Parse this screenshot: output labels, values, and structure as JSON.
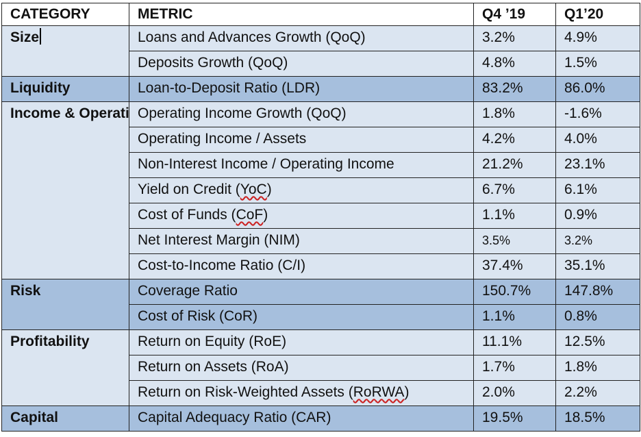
{
  "headers": {
    "category": "CATEGORY",
    "metric": "METRIC",
    "q4": "Q4 ’19",
    "q1": "Q1’20"
  },
  "groups": [
    {
      "category": "Size",
      "rows": [
        {
          "metric": "Loans and Advances Growth (QoQ)",
          "q4": "3.2%",
          "q1": "4.9%"
        },
        {
          "metric": "Deposits Growth (QoQ)",
          "q4": "4.8%",
          "q1": "1.5%"
        }
      ]
    },
    {
      "category": "Liquidity",
      "rows": [
        {
          "metric": "Loan-to-Deposit Ratio (LDR)",
          "q4": "83.2%",
          "q1": "86.0%"
        }
      ]
    },
    {
      "category": "Income & Operating Efficiency",
      "rows": [
        {
          "metric": "Operating Income Growth (QoQ)",
          "q4": "1.8%",
          "q1": "-1.6%"
        },
        {
          "metric": "Operating Income / Assets",
          "q4": "4.2%",
          "q1": "4.0%"
        },
        {
          "metric": "Non-Interest Income / Operating Income",
          "q4": "21.2%",
          "q1": "23.1%"
        },
        {
          "metric_prefix": "Yield on Credit (",
          "metric_term": "YoC",
          "metric_suffix": ")",
          "q4": "6.7%",
          "q1": "6.1%"
        },
        {
          "metric_prefix": "Cost of Funds (",
          "metric_term": "CoF",
          "metric_suffix": ")",
          "q4": "1.1%",
          "q1": "0.9%"
        },
        {
          "metric": "Net Interest Margin (NIM)",
          "q4": "3.5%",
          "q1": "3.2%"
        },
        {
          "metric": "Cost-to-Income Ratio (C/I)",
          "q4": "37.4%",
          "q1": "35.1%"
        }
      ]
    },
    {
      "category": "Risk",
      "rows": [
        {
          "metric": "Coverage Ratio",
          "q4": "150.7%",
          "q1": "147.8%"
        },
        {
          "metric": "Cost of Risk (CoR)",
          "q4": "1.1%",
          "q1": "0.8%"
        }
      ]
    },
    {
      "category": "Profitability",
      "rows": [
        {
          "metric": "Return on Equity (RoE)",
          "q4": "11.1%",
          "q1": "12.5%"
        },
        {
          "metric": "Return on Assets (RoA)",
          "q4": "1.7%",
          "q1": "1.8%"
        },
        {
          "metric_prefix": "Return on Risk-Weighted Assets (",
          "metric_term": "RoRWA",
          "metric_suffix": ")",
          "q4": "2.0%",
          "q1": "2.2%"
        }
      ]
    },
    {
      "category": "Capital",
      "rows": [
        {
          "metric": "Capital Adequacy Ratio (CAR)",
          "q4": "19.5%",
          "q1": "18.5%"
        }
      ]
    }
  ],
  "colors": {
    "header_bg": "#ffffff",
    "light_row": "#dbe5f1",
    "dark_row": "#a6bfdd",
    "border": "#222222",
    "spellcheck_underline": "#cc2222"
  }
}
